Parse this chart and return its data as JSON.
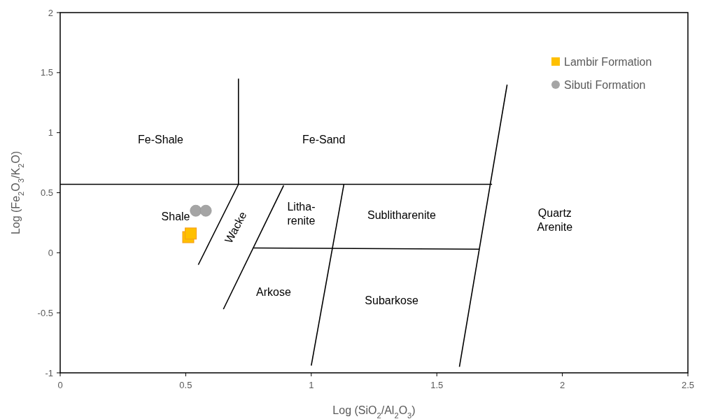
{
  "chart_data": {
    "type": "scatter",
    "xlabel": "Log (SiO$_{2}$/Al$_{2}$O$_{3}$)",
    "ylabel": "Log (Fe$_{2}$O$_{3}$/K$_{2}$O)",
    "xlim": [
      0,
      2.5
    ],
    "ylim": [
      -1,
      2
    ],
    "xticks": [
      0,
      0.5,
      1,
      1.5,
      2,
      2.5
    ],
    "yticks": [
      -1,
      -0.5,
      0,
      0.5,
      1,
      1.5,
      2
    ],
    "grid": false,
    "legend": "top right",
    "series": [
      {
        "name": "Lambir Formation",
        "color": "#ffc000",
        "marker": "square",
        "x": [
          0.51,
          0.52
        ],
        "values": [
          0.13,
          0.16
        ]
      },
      {
        "name": "Sibuti Formation",
        "color": "#a5a5a5",
        "marker": "circle",
        "x": [
          0.54,
          0.58
        ],
        "values": [
          0.35,
          0.35
        ]
      },
      {
        "type": "line",
        "color": "#000000",
        "marker": "none",
        "x": [
          0,
          1.72
        ],
        "values": [
          0.57,
          0.57
        ]
      },
      {
        "type": "line",
        "color": "#000000",
        "marker": "none",
        "x": [
          0.71,
          0.71
        ],
        "values": [
          0.57,
          1.45
        ]
      },
      {
        "type": "line",
        "color": "#000000",
        "marker": "none",
        "x": [
          0.55,
          0.71
        ],
        "values": [
          -0.1,
          0.57
        ]
      },
      {
        "type": "line",
        "color": "#000000",
        "marker": "none",
        "x": [
          0.65,
          0.89
        ],
        "values": [
          -0.47,
          0.56
        ]
      },
      {
        "type": "line",
        "color": "#000000",
        "marker": "none",
        "x": [
          1.0,
          1.13
        ],
        "values": [
          -0.94,
          0.57
        ]
      },
      {
        "type": "line",
        "color": "#000000",
        "marker": "none",
        "x": [
          1.59,
          1.78
        ],
        "values": [
          -0.95,
          1.4
        ]
      },
      {
        "type": "line",
        "color": "#000000",
        "marker": "none",
        "x": [
          0.77,
          1.67
        ],
        "values": [
          0.04,
          0.03
        ]
      }
    ],
    "annotations": [
      "Fe-Shale",
      "Fe-Sand",
      "Shale",
      "Wacke",
      "Litha-\nrenite",
      "Sublitharenite",
      "Quartz\nArenite",
      "Arkose",
      "Subarkose"
    ]
  }
}
